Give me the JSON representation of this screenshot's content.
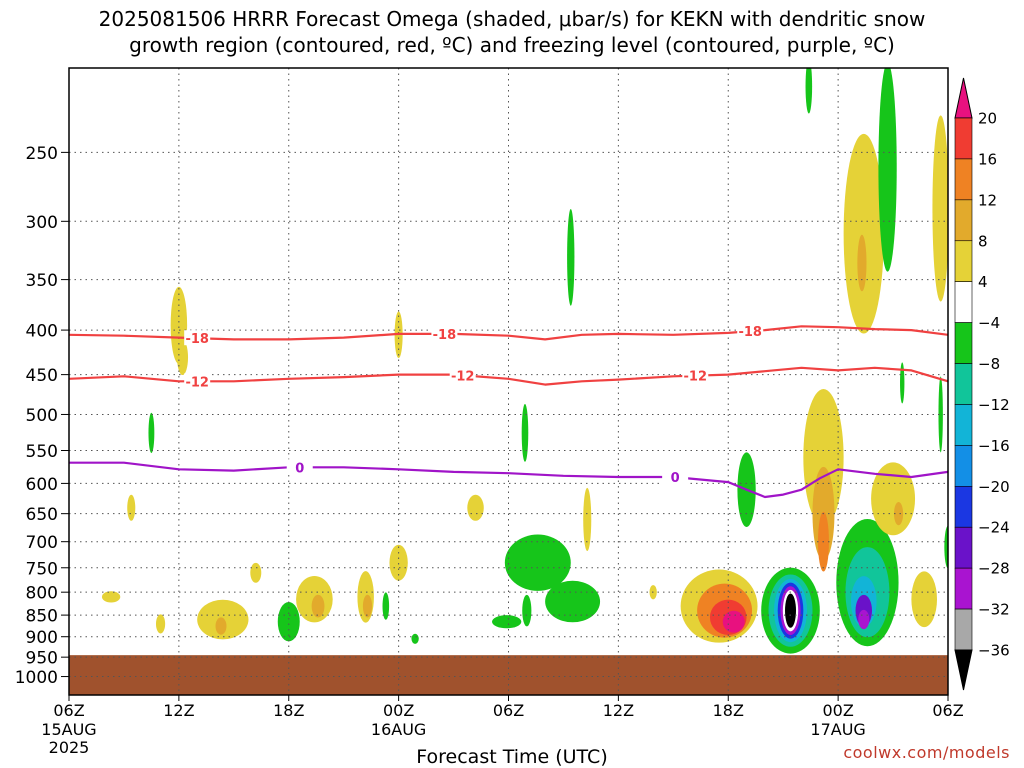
{
  "title": {
    "line1": "2025081506 HRRR Forecast Omega (shaded, μbar/s) for KEKN with dendritic snow",
    "line2": "growth region (contoured, red, ºC) and freezing level (contoured, purple, ºC)"
  },
  "credit": "coolwx.com/models",
  "chart_data": {
    "type": "contour",
    "xlabel": "Forecast Time (UTC)",
    "x_range_hours": [
      0,
      48
    ],
    "x_ticks": [
      {
        "h": 0,
        "label": "06Z",
        "sub": "15AUG",
        "sub2": "2025"
      },
      {
        "h": 6,
        "label": "12Z",
        "sub": "",
        "sub2": ""
      },
      {
        "h": 12,
        "label": "18Z",
        "sub": "",
        "sub2": ""
      },
      {
        "h": 18,
        "label": "00Z",
        "sub": "16AUG",
        "sub2": ""
      },
      {
        "h": 24,
        "label": "06Z",
        "sub": "",
        "sub2": ""
      },
      {
        "h": 30,
        "label": "12Z",
        "sub": "",
        "sub2": ""
      },
      {
        "h": 36,
        "label": "18Z",
        "sub": "",
        "sub2": ""
      },
      {
        "h": 42,
        "label": "00Z",
        "sub": "17AUG",
        "sub2": ""
      },
      {
        "h": 48,
        "label": "06Z",
        "sub": "",
        "sub2": ""
      }
    ],
    "y_scale": "log-pressure",
    "y_range_hpa": [
      1050,
      200
    ],
    "y_ticks": [
      250,
      300,
      350,
      400,
      450,
      500,
      550,
      600,
      650,
      700,
      750,
      800,
      850,
      900,
      950,
      1000
    ],
    "terrain_top_hpa": 945,
    "colorbar": {
      "labels": [
        "20",
        "16",
        "12",
        "8",
        "4",
        "−4",
        "−8",
        "−12",
        "−16",
        "−20",
        "−24",
        "−28",
        "−32",
        "−36"
      ],
      "colors": [
        "#e8117f",
        "#f03c32",
        "#ef8223",
        "#e2aa2c",
        "#e5d237",
        "#ffffff",
        "#16c51a",
        "#11c59a",
        "#12b4d7",
        "#138fe6",
        "#1b37e2",
        "#6a12c9",
        "#a914d0",
        "#a8a8a8",
        "#000000"
      ]
    },
    "isotherms": [
      {
        "name": "-18",
        "color": "#f04141",
        "label_text": "-18",
        "label_hours": [
          7,
          20.5,
          37.2
        ],
        "points": [
          [
            0,
            405
          ],
          [
            3,
            406
          ],
          [
            6,
            408
          ],
          [
            9,
            410
          ],
          [
            12,
            410
          ],
          [
            15,
            408
          ],
          [
            18,
            404
          ],
          [
            21,
            404
          ],
          [
            24,
            406
          ],
          [
            26,
            410
          ],
          [
            28,
            405
          ],
          [
            30,
            404
          ],
          [
            33,
            405
          ],
          [
            36,
            403
          ],
          [
            38,
            400
          ],
          [
            40,
            396
          ],
          [
            42,
            397
          ],
          [
            44,
            399
          ],
          [
            46,
            400
          ],
          [
            48,
            405
          ]
        ]
      },
      {
        "name": "-12",
        "color": "#f04141",
        "label_text": "-12",
        "label_hours": [
          7,
          21.5,
          34.2
        ],
        "points": [
          [
            0,
            455
          ],
          [
            3,
            452
          ],
          [
            6,
            458
          ],
          [
            9,
            458
          ],
          [
            12,
            455
          ],
          [
            15,
            453
          ],
          [
            18,
            450
          ],
          [
            21,
            450
          ],
          [
            24,
            455
          ],
          [
            26,
            462
          ],
          [
            28,
            458
          ],
          [
            30,
            456
          ],
          [
            33,
            452
          ],
          [
            36,
            450
          ],
          [
            38,
            446
          ],
          [
            40,
            442
          ],
          [
            42,
            445
          ],
          [
            44,
            442
          ],
          [
            46,
            445
          ],
          [
            48,
            458
          ]
        ]
      },
      {
        "name": "0",
        "color": "#a014c8",
        "label_text": "0",
        "label_hours": [
          12.6,
          33.1
        ],
        "points": [
          [
            0,
            568
          ],
          [
            3,
            568
          ],
          [
            6,
            578
          ],
          [
            9,
            580
          ],
          [
            12,
            575
          ],
          [
            15,
            575
          ],
          [
            18,
            578
          ],
          [
            21,
            582
          ],
          [
            24,
            584
          ],
          [
            27,
            588
          ],
          [
            30,
            590
          ],
          [
            33,
            590
          ],
          [
            36,
            598
          ],
          [
            37,
            610
          ],
          [
            38,
            622
          ],
          [
            39,
            618
          ],
          [
            40,
            610
          ],
          [
            41,
            592
          ],
          [
            42,
            578
          ],
          [
            44,
            585
          ],
          [
            46,
            590
          ],
          [
            48,
            582
          ]
        ]
      }
    ],
    "omega_blobs": [
      {
        "h": 6.0,
        "p": 395,
        "rh": 0.45,
        "rp": 40,
        "color": "#e5d237"
      },
      {
        "h": 6.2,
        "p": 430,
        "rh": 0.3,
        "rp": 20,
        "color": "#e5d237"
      },
      {
        "h": 18.0,
        "p": 405,
        "rh": 0.22,
        "rp": 25,
        "color": "#e5d237"
      },
      {
        "h": 27.4,
        "p": 330,
        "rh": 0.2,
        "rp": 42,
        "color": "#16c51a"
      },
      {
        "h": 24.9,
        "p": 525,
        "rh": 0.18,
        "rp": 40,
        "color": "#16c51a"
      },
      {
        "h": 4.5,
        "p": 525,
        "rh": 0.16,
        "rp": 28,
        "color": "#16c51a"
      },
      {
        "h": 3.4,
        "p": 640,
        "rh": 0.22,
        "rp": 22,
        "color": "#e5d237"
      },
      {
        "h": 22.2,
        "p": 640,
        "rh": 0.45,
        "rp": 22,
        "color": "#e5d237"
      },
      {
        "h": 28.3,
        "p": 660,
        "rh": 0.22,
        "rp": 55,
        "color": "#e5d237"
      },
      {
        "h": 2.3,
        "p": 810,
        "rh": 0.5,
        "rp": 12,
        "color": "#e5d237"
      },
      {
        "h": 5.0,
        "p": 870,
        "rh": 0.25,
        "rp": 22,
        "color": "#e5d237"
      },
      {
        "h": 8.4,
        "p": 860,
        "rh": 1.4,
        "rp": 45,
        "color": "#e5d237"
      },
      {
        "h": 8.3,
        "p": 875,
        "rh": 0.3,
        "rp": 20,
        "color": "#e2aa2c"
      },
      {
        "h": 12.0,
        "p": 865,
        "rh": 0.6,
        "rp": 45,
        "color": "#16c51a"
      },
      {
        "h": 13.4,
        "p": 815,
        "rh": 1.0,
        "rp": 50,
        "color": "#e5d237"
      },
      {
        "h": 13.6,
        "p": 830,
        "rh": 0.35,
        "rp": 25,
        "color": "#e2aa2c"
      },
      {
        "h": 10.2,
        "p": 760,
        "rh": 0.3,
        "rp": 20,
        "color": "#e5d237"
      },
      {
        "h": 16.2,
        "p": 810,
        "rh": 0.45,
        "rp": 55,
        "color": "#e5d237"
      },
      {
        "h": 16.3,
        "p": 830,
        "rh": 0.25,
        "rp": 25,
        "color": "#e2aa2c"
      },
      {
        "h": 18.0,
        "p": 740,
        "rh": 0.5,
        "rp": 35,
        "color": "#e5d237"
      },
      {
        "h": 17.3,
        "p": 830,
        "rh": 0.18,
        "rp": 30,
        "color": "#16c51a"
      },
      {
        "h": 18.9,
        "p": 905,
        "rh": 0.2,
        "rp": 12,
        "color": "#16c51a"
      },
      {
        "h": 23.9,
        "p": 865,
        "rh": 0.8,
        "rp": 15,
        "color": "#16c51a"
      },
      {
        "h": 25.6,
        "p": 740,
        "rh": 1.8,
        "rp": 55,
        "color": "#16c51a"
      },
      {
        "h": 27.5,
        "p": 820,
        "rh": 1.5,
        "rp": 45,
        "color": "#16c51a"
      },
      {
        "h": 25.0,
        "p": 840,
        "rh": 0.25,
        "rp": 35,
        "color": "#16c51a"
      },
      {
        "h": 31.9,
        "p": 800,
        "rh": 0.2,
        "rp": 15,
        "color": "#e5d237"
      },
      {
        "h": 37.0,
        "p": 610,
        "rh": 0.5,
        "rp": 60,
        "color": "#16c51a"
      },
      {
        "h": 35.5,
        "p": 830,
        "rh": 2.1,
        "rp": 80,
        "color": "#e5d237"
      },
      {
        "h": 35.8,
        "p": 840,
        "rh": 1.5,
        "rp": 60,
        "color": "#ef8223"
      },
      {
        "h": 36.0,
        "p": 855,
        "rh": 1.0,
        "rp": 40,
        "color": "#f03c32"
      },
      {
        "h": 36.3,
        "p": 865,
        "rh": 0.6,
        "rp": 25,
        "color": "#e8117f"
      },
      {
        "h": 41.2,
        "p": 560,
        "rh": 1.1,
        "rp": 100,
        "color": "#e5d237"
      },
      {
        "h": 41.2,
        "p": 650,
        "rh": 0.6,
        "rp": 80,
        "color": "#e2aa2c"
      },
      {
        "h": 41.2,
        "p": 700,
        "rh": 0.3,
        "rp": 55,
        "color": "#ef8223"
      },
      {
        "h": 39.4,
        "p": 840,
        "rh": 1.6,
        "rp": 95,
        "color": "#16c51a"
      },
      {
        "h": 39.4,
        "p": 840,
        "rh": 1.2,
        "rp": 80,
        "color": "#11c59a"
      },
      {
        "h": 39.4,
        "p": 840,
        "rh": 0.9,
        "rp": 70,
        "color": "#12b4d7"
      },
      {
        "h": 39.4,
        "p": 840,
        "rh": 0.7,
        "rp": 62,
        "color": "#1b37e2"
      },
      {
        "h": 39.4,
        "p": 840,
        "rh": 0.55,
        "rp": 54,
        "color": "#a914d0"
      },
      {
        "h": 39.4,
        "p": 840,
        "rh": 0.42,
        "rp": 46,
        "color": "#ffffff"
      },
      {
        "h": 39.4,
        "p": 840,
        "rh": 0.3,
        "rp": 38,
        "color": "#000000"
      },
      {
        "h": 43.6,
        "p": 780,
        "rh": 1.7,
        "rp": 130,
        "color": "#16c51a"
      },
      {
        "h": 43.6,
        "p": 800,
        "rh": 1.2,
        "rp": 95,
        "color": "#11c59a"
      },
      {
        "h": 43.4,
        "p": 820,
        "rh": 0.7,
        "rp": 55,
        "color": "#12b4d7"
      },
      {
        "h": 43.4,
        "p": 840,
        "rh": 0.45,
        "rp": 35,
        "color": "#6a12c9"
      },
      {
        "h": 43.4,
        "p": 860,
        "rh": 0.3,
        "rp": 22,
        "color": "#a914d0"
      },
      {
        "h": 43.4,
        "p": 310,
        "rh": 1.1,
        "rp": 80,
        "color": "#e5d237"
      },
      {
        "h": 43.3,
        "p": 335,
        "rh": 0.25,
        "rp": 25,
        "color": "#e2aa2c"
      },
      {
        "h": 45.0,
        "p": 625,
        "rh": 1.2,
        "rp": 60,
        "color": "#e5d237"
      },
      {
        "h": 45.3,
        "p": 650,
        "rh": 0.25,
        "rp": 20,
        "color": "#e2aa2c"
      },
      {
        "h": 46.7,
        "p": 815,
        "rh": 0.7,
        "rp": 60,
        "color": "#e5d237"
      },
      {
        "h": 47.6,
        "p": 290,
        "rh": 0.45,
        "rp": 70,
        "color": "#e5d237"
      },
      {
        "h": 44.7,
        "p": 260,
        "rh": 0.5,
        "rp": 70,
        "color": "#16c51a"
      },
      {
        "h": 40.4,
        "p": 210,
        "rh": 0.18,
        "rp": 15,
        "color": "#16c51a"
      },
      {
        "h": 45.5,
        "p": 460,
        "rh": 0.12,
        "rp": 25,
        "color": "#16c51a"
      },
      {
        "h": 47.6,
        "p": 500,
        "rh": 0.12,
        "rp": 50,
        "color": "#16c51a"
      },
      {
        "h": 48.0,
        "p": 710,
        "rh": 0.2,
        "rp": 40,
        "color": "#16c51a"
      }
    ]
  }
}
